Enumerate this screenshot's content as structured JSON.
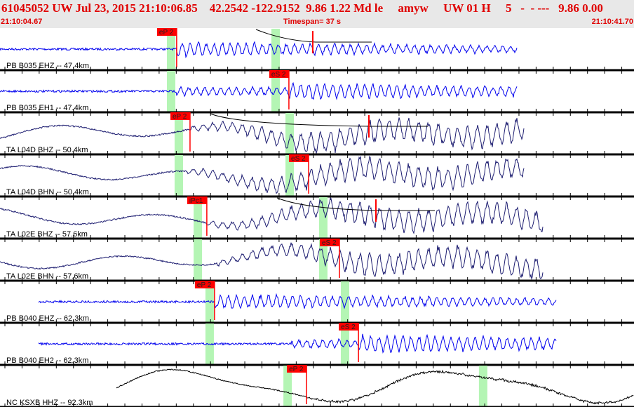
{
  "header": {
    "title": "61045052 UW Jul 23, 2015 21:10:06.85    42.2542 -122.9152  9.86 1.22 Md le     amyw     UW 01 H     5   -  - ---   9.86 0.00",
    "start_time": "21:10:04.67",
    "timespan": "Timespan=  37 s",
    "end_time": "21:10:41.70"
  },
  "timespan_seconds": 37,
  "colors": {
    "header_text": "#e00000",
    "pick": "#ff0000",
    "window": "#b4f5b4",
    "blue": "#0000ee",
    "navy": "#1c1c70",
    "black": "#000000"
  },
  "channels": [
    {
      "label": "PB B035 EHZ -- 47.4km",
      "color": "blue",
      "trace": [
        0,
        30.2
      ],
      "windows": [
        9.74,
        15.84
      ],
      "pick": {
        "text": "eP 2",
        "t": 10.31
      },
      "type": "hf"
    },
    {
      "label": "PB B035 EH1 -- 47.4km",
      "color": "blue",
      "trace": [
        0,
        30.2
      ],
      "windows": [
        9.74,
        15.84
      ],
      "pick": {
        "text": "eS 2",
        "t": 16.86
      },
      "type": "hf"
    },
    {
      "label": "TA L04D BHZ -- 50.4km",
      "color": "navy",
      "trace": [
        0,
        30.6
      ],
      "windows": [
        10.19,
        16.66
      ],
      "pick": {
        "text": "eP 2",
        "t": 11.09
      },
      "type": "lp"
    },
    {
      "label": "TA L04D BHN -- 50.4km",
      "color": "navy",
      "trace": [
        0,
        30.6
      ],
      "windows": [
        10.19,
        16.66
      ],
      "pick": {
        "text": "eS 2",
        "t": 18.01
      },
      "type": "lp"
    },
    {
      "label": "TA L02E BHZ -- 57.6km",
      "color": "navy",
      "trace": [
        0,
        31.7
      ],
      "windows": [
        11.3,
        18.62
      ],
      "pick": {
        "text": "iPc1",
        "t": 12.07
      },
      "type": "lp"
    },
    {
      "label": "TA L02E BHN -- 57.6km",
      "color": "navy",
      "trace": [
        0,
        31.7
      ],
      "windows": [
        11.3,
        18.62
      ],
      "pick": {
        "text": "eS 2",
        "t": 19.81
      },
      "type": "lp"
    },
    {
      "label": "PB B040 EHZ -- 62.3km",
      "color": "blue",
      "trace": [
        2.25,
        32.46
      ],
      "windows": [
        11.99,
        19.89
      ],
      "pick": {
        "text": "eP 2",
        "t": 12.52
      },
      "type": "hf"
    },
    {
      "label": "PB B040 EH2 -- 62.3km",
      "color": "blue",
      "trace": [
        2.25,
        32.46
      ],
      "windows": [
        11.99,
        19.89
      ],
      "pick": {
        "text": "eS 2",
        "t": 20.92
      },
      "type": "hf"
    },
    {
      "label": "NC KSXB HHZ -- 92.3km",
      "color": "black",
      "trace": [
        6.8,
        37
      ],
      "windows": [
        16.54,
        27.95
      ],
      "pick": {
        "text": "eP 2",
        "t": 17.89
      },
      "type": "bb"
    }
  ]
}
